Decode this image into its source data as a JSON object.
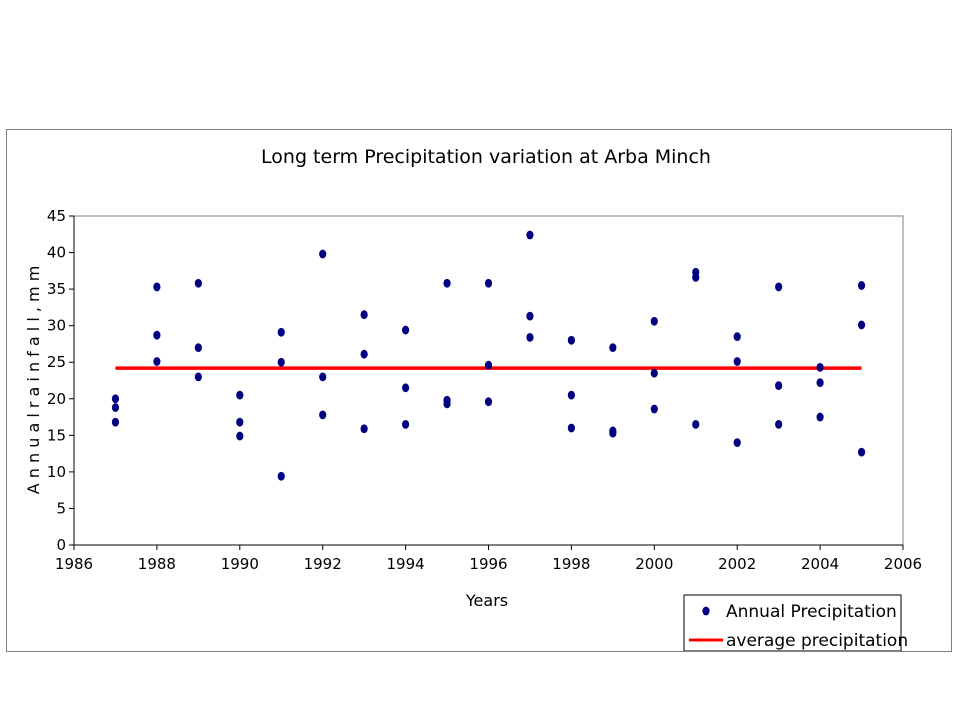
{
  "chart_data": {
    "type": "scatter",
    "title": "Long term Precipitation variation at Arba Minch",
    "xlabel": "Years",
    "ylabel": "A n n u a l   r a i n f a l l ,   m m",
    "xlim": [
      1986,
      2006
    ],
    "ylim": [
      0,
      45
    ],
    "xticks": [
      1986,
      1988,
      1990,
      1992,
      1994,
      1996,
      1998,
      2000,
      2002,
      2004,
      2006
    ],
    "yticks": [
      0,
      5,
      10,
      15,
      20,
      25,
      30,
      35,
      40,
      45
    ],
    "grid": false,
    "legend_position": "bottom-right",
    "series": [
      {
        "name": "Annual Precipitation",
        "kind": "scatter",
        "color": "#000080",
        "points": [
          [
            1987,
            20.0
          ],
          [
            1987,
            18.8
          ],
          [
            1987,
            16.8
          ],
          [
            1988,
            35.3
          ],
          [
            1988,
            28.7
          ],
          [
            1988,
            25.1
          ],
          [
            1989,
            35.8
          ],
          [
            1989,
            27.0
          ],
          [
            1989,
            23.0
          ],
          [
            1990,
            20.5
          ],
          [
            1990,
            16.8
          ],
          [
            1990,
            14.9
          ],
          [
            1991,
            29.1
          ],
          [
            1991,
            25.0
          ],
          [
            1991,
            9.4
          ],
          [
            1992,
            39.8
          ],
          [
            1992,
            23.0
          ],
          [
            1992,
            17.8
          ],
          [
            1993,
            31.5
          ],
          [
            1993,
            26.1
          ],
          [
            1993,
            15.9
          ],
          [
            1994,
            29.4
          ],
          [
            1994,
            21.5
          ],
          [
            1994,
            16.5
          ],
          [
            1995,
            35.8
          ],
          [
            1995,
            19.8
          ],
          [
            1995,
            19.3
          ],
          [
            1996,
            35.8
          ],
          [
            1996,
            24.6
          ],
          [
            1996,
            19.6
          ],
          [
            1997,
            42.4
          ],
          [
            1997,
            31.3
          ],
          [
            1997,
            28.4
          ],
          [
            1998,
            28.0
          ],
          [
            1998,
            20.5
          ],
          [
            1998,
            16.0
          ],
          [
            1999,
            27.0
          ],
          [
            1999,
            15.6
          ],
          [
            1999,
            15.3
          ],
          [
            2000,
            30.6
          ],
          [
            2000,
            23.5
          ],
          [
            2000,
            18.6
          ],
          [
            2001,
            37.3
          ],
          [
            2001,
            36.6
          ],
          [
            2001,
            16.5
          ],
          [
            2002,
            28.5
          ],
          [
            2002,
            25.1
          ],
          [
            2002,
            14.0
          ],
          [
            2003,
            35.3
          ],
          [
            2003,
            21.8
          ],
          [
            2003,
            16.5
          ],
          [
            2004,
            24.3
          ],
          [
            2004,
            22.2
          ],
          [
            2004,
            17.5
          ],
          [
            2005,
            35.5
          ],
          [
            2005,
            30.1
          ],
          [
            2005,
            12.7
          ]
        ]
      },
      {
        "name": "average precipitation",
        "kind": "line",
        "color": "#ff0000",
        "x": [
          1987,
          2005
        ],
        "values": [
          24.2,
          24.2
        ]
      }
    ]
  }
}
